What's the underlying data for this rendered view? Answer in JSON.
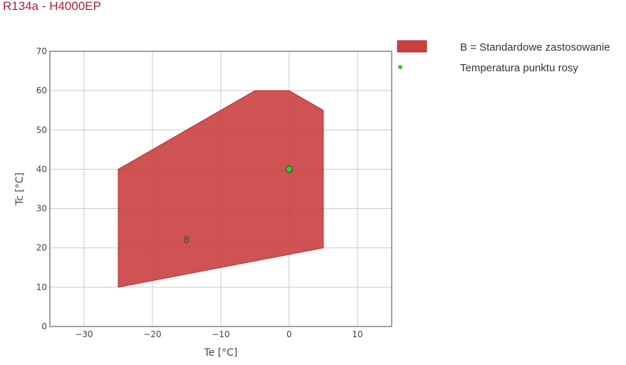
{
  "title": "R134a - H4000EP",
  "colors": {
    "title": "#a32638",
    "region_fill": "#c9403f",
    "region_stroke": "#b5333a",
    "point_fill": "#2ecc2e",
    "point_stroke": "#1a5c1a",
    "grid": "#c8c8c8",
    "axis": "#444444"
  },
  "chart_data": {
    "type": "area",
    "xlabel": "Te [°C]",
    "ylabel": "Tc [°C]",
    "xlim": [
      -35,
      15
    ],
    "ylim": [
      0,
      70
    ],
    "x_ticks": [
      -30,
      -20,
      -10,
      0,
      10
    ],
    "y_ticks": [
      0,
      10,
      20,
      30,
      40,
      50,
      60,
      70
    ],
    "x_tick_labels": [
      "−30",
      "−20",
      "−10",
      "0",
      "10"
    ],
    "y_tick_labels": [
      "0",
      "10",
      "20",
      "30",
      "40",
      "50",
      "60",
      "70"
    ],
    "grid": true,
    "legend_position": "right",
    "series": [
      {
        "name": "B = Standardowe zastosowanie",
        "label": "B",
        "kind": "polygon",
        "points": [
          [
            -25,
            10
          ],
          [
            -25,
            40
          ],
          [
            -5,
            60
          ],
          [
            0,
            60
          ],
          [
            5,
            55
          ],
          [
            5,
            20
          ],
          [
            -25,
            10
          ]
        ],
        "label_at": [
          -15,
          22
        ]
      },
      {
        "name": "Temperatura punktu rosy",
        "kind": "point",
        "points": [
          [
            0,
            40
          ]
        ]
      }
    ]
  }
}
